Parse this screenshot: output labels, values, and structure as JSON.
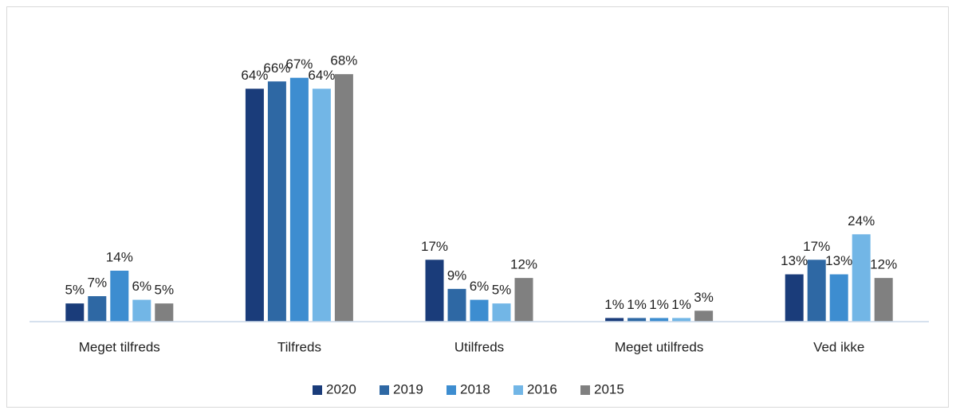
{
  "chart_data": {
    "type": "bar",
    "categories": [
      "Meget tilfreds",
      "Tilfreds",
      "Utilfreds",
      "Meget utilfreds",
      "Ved ikke"
    ],
    "series": [
      {
        "name": "2020",
        "color": "#1a3c7a",
        "values": [
          5,
          64,
          17,
          1,
          13
        ],
        "value_labels": [
          "5%",
          "64%",
          "17%",
          "1%",
          "13%"
        ]
      },
      {
        "name": "2019",
        "color": "#2e68a4",
        "values": [
          7,
          66,
          9,
          1,
          17
        ],
        "value_labels": [
          "7%",
          "66%",
          "9%",
          "1%",
          "17%"
        ]
      },
      {
        "name": "2018",
        "color": "#3d8dd0",
        "values": [
          14,
          67,
          6,
          1,
          13
        ],
        "value_labels": [
          "14%",
          "67%",
          "6%",
          "1%",
          "13%"
        ]
      },
      {
        "name": "2016",
        "color": "#72b6e6",
        "values": [
          6,
          64,
          5,
          1,
          24
        ],
        "value_labels": [
          "6%",
          "64%",
          "5%",
          "1%",
          "24%"
        ]
      },
      {
        "name": "2015",
        "color": "#808080",
        "values": [
          5,
          68,
          12,
          3,
          12
        ],
        "value_labels": [
          "5%",
          "68%",
          "12%",
          "3%",
          "12%"
        ]
      }
    ],
    "ylim": [
      0,
      70
    ],
    "grid": false,
    "legend": "bottom"
  }
}
